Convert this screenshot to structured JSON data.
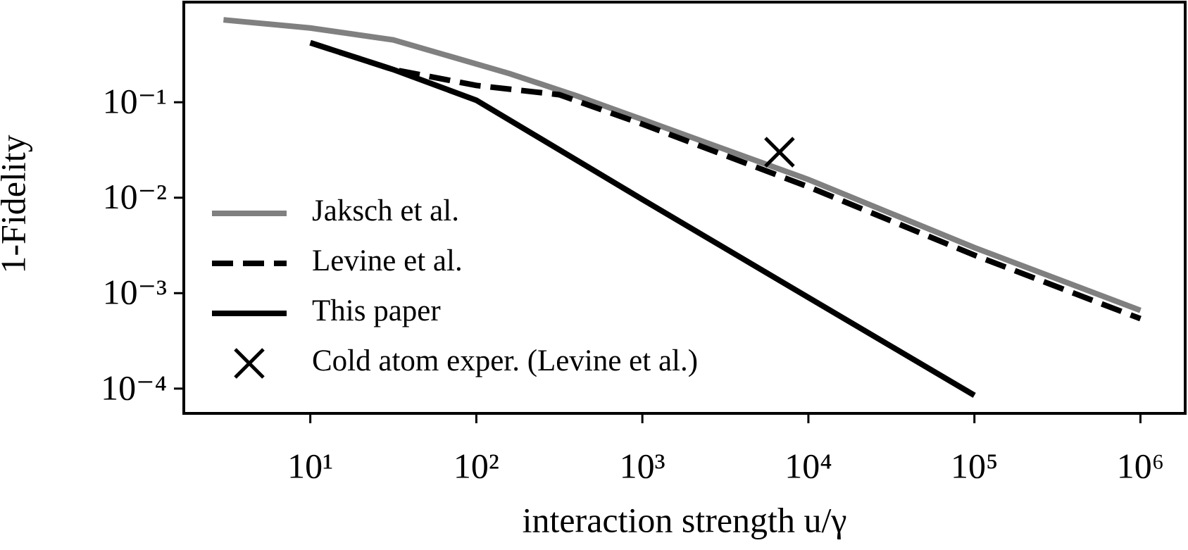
{
  "chart_data": {
    "type": "line",
    "xlabel": "interaction strength u/γ",
    "ylabel": "1-Fidelity",
    "xscale": "log",
    "yscale": "log",
    "xlim": [
      1.73,
      1860000
    ],
    "ylim": [
      1.12,
      5.5e-05
    ],
    "xticks": [
      {
        "value": 10,
        "label": "10¹"
      },
      {
        "value": 100,
        "label": "10²"
      },
      {
        "value": 1000,
        "label": "10³"
      },
      {
        "value": 10000,
        "label": "10⁴"
      },
      {
        "value": 100000,
        "label": "10⁵"
      },
      {
        "value": 1000000,
        "label": "10⁶"
      }
    ],
    "yticks": [
      {
        "value": 0.1,
        "label": "10⁻¹"
      },
      {
        "value": 0.01,
        "label": "10⁻²"
      },
      {
        "value": 0.001,
        "label": "10⁻³"
      },
      {
        "value": 0.0001,
        "label": "10⁻⁴"
      }
    ],
    "legend": "lower left",
    "series": [
      {
        "name": "Jaksch et al.",
        "color": "#808080",
        "style": "solid",
        "x": [
          3,
          10,
          31.6,
          158,
          400,
          1000,
          10000,
          100000,
          1000000
        ],
        "values": [
          0.73,
          0.6,
          0.45,
          0.2,
          0.117,
          0.066,
          0.0155,
          0.003,
          0.00066
        ]
      },
      {
        "name": "Levine et al.",
        "color": "#000000",
        "style": "dashed",
        "x": [
          10,
          31.6,
          100,
          316,
          1000,
          10000,
          100000,
          1000000
        ],
        "values": [
          0.42,
          0.22,
          0.15,
          0.12,
          0.059,
          0.013,
          0.0025,
          0.00054
        ]
      },
      {
        "name": "This paper",
        "color": "#000000",
        "style": "solid",
        "x": [
          10,
          31.6,
          100,
          1000,
          10000,
          100000
        ],
        "values": [
          0.42,
          0.22,
          0.105,
          0.0096,
          0.0009,
          8.5e-05
        ]
      },
      {
        "name": "Cold atom exper. (Levine et al.)",
        "color": "#000000",
        "marker": "x",
        "x": [
          6700
        ],
        "values": [
          0.03
        ]
      }
    ]
  }
}
